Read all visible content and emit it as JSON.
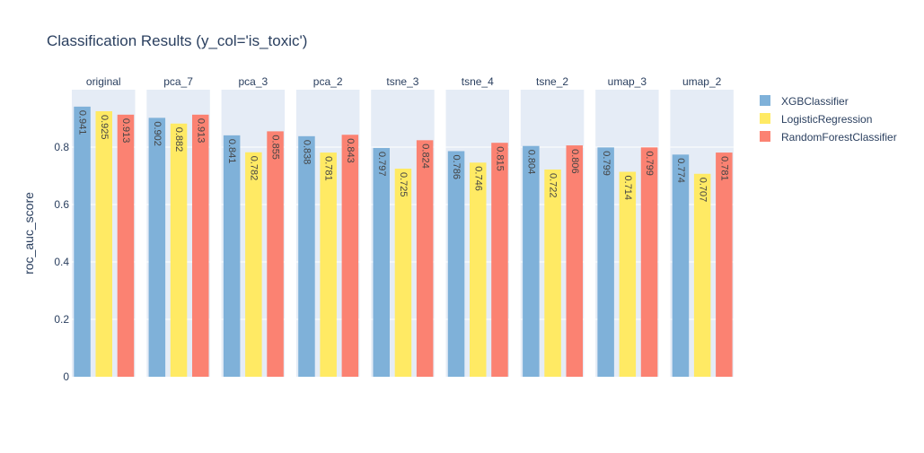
{
  "chart_data": {
    "type": "bar",
    "title": "Classification Results (y_col='is_toxic')",
    "ylabel": "roc_auc_score",
    "ylim": [
      0,
      1
    ],
    "yticks": [
      0,
      0.2,
      0.4,
      0.6,
      0.8
    ],
    "ytick_labels": [
      "0",
      "0.2",
      "0.4",
      "0.6",
      "0.8"
    ],
    "grid": true,
    "legend_position": "top-right",
    "facets": [
      "original",
      "pca_7",
      "pca_3",
      "pca_2",
      "tsne_3",
      "tsne_4",
      "tsne_2",
      "umap_3",
      "umap_2"
    ],
    "series": [
      {
        "name": "XGBClassifier",
        "color": "#7fb1d9",
        "values": [
          0.941,
          0.902,
          0.841,
          0.838,
          0.797,
          0.786,
          0.804,
          0.799,
          0.774
        ]
      },
      {
        "name": "LogisticRegression",
        "color": "#ffea64",
        "values": [
          0.925,
          0.882,
          0.782,
          0.781,
          0.725,
          0.746,
          0.722,
          0.714,
          0.707
        ]
      },
      {
        "name": "RandomForestClassifier",
        "color": "#fb8272",
        "values": [
          0.913,
          0.913,
          0.855,
          0.843,
          0.824,
          0.815,
          0.806,
          0.799,
          0.781
        ]
      }
    ],
    "data_labels": [
      [
        "0.941",
        "0.902",
        "0.841",
        "0.838",
        "0.797",
        "0.786",
        "0.804",
        "0.799",
        "0.774"
      ],
      [
        "0.925",
        "0.882",
        "0.782",
        "0.781",
        "0.725",
        "0.746",
        "0.722",
        "0.714",
        "0.707"
      ],
      [
        "0.913",
        "0.913",
        "0.855",
        "0.843",
        "0.824",
        "0.815",
        "0.806",
        "0.799",
        "0.781"
      ]
    ]
  }
}
